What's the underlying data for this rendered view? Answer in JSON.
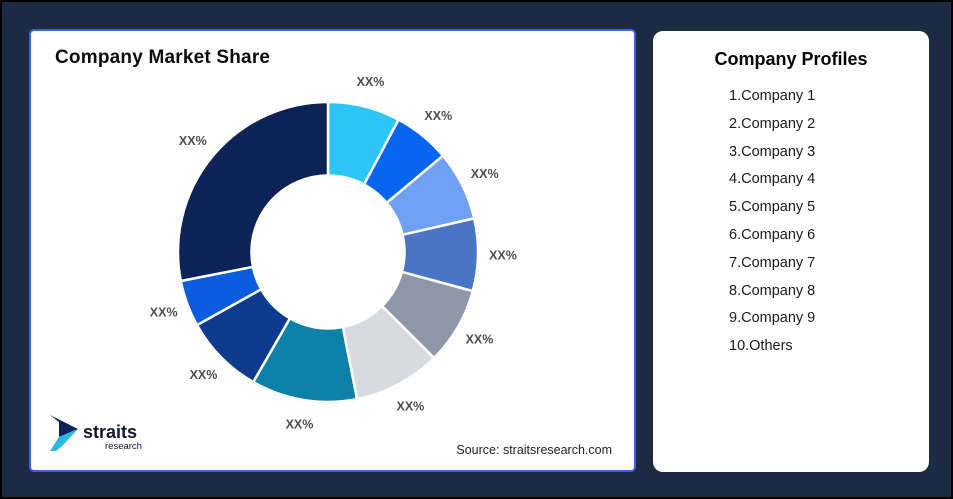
{
  "page": {
    "background_color": "#1D2A44",
    "outer_border_color": "#000000"
  },
  "left_card": {
    "title": "Company Market Share",
    "source": "Source: straitsresearch.com",
    "border_color": "#3E63DE",
    "logo": {
      "brand": "straits",
      "sub": "research",
      "mark_navy": "#0D2356",
      "mark_cyan": "#29B9E9"
    }
  },
  "right_card": {
    "title": "Company Profiles",
    "items": [
      "1.Company 1",
      "2.Company 2",
      "3.Company 3",
      "4.Company 4",
      "5.Company 5",
      "6.Company 6",
      "7.Company 7",
      "8.Company 8",
      "9.Company 9",
      "10.Others"
    ]
  },
  "chart_data": {
    "type": "pie",
    "subtype": "donut",
    "title": "Company Market Share",
    "labels": [
      "XX%",
      "XX%",
      "XX%",
      "XX%",
      "XX%",
      "XX%",
      "XX%",
      "XX%",
      "XX%",
      "XX%"
    ],
    "values": [
      7.8,
      6.1,
      7.5,
      7.8,
      8.3,
      9.4,
      11.4,
      8.6,
      5.0,
      28.1
    ],
    "colors": [
      "#2CC5F5",
      "#0765EF",
      "#6FA0F4",
      "#4A74C4",
      "#8F96A8",
      "#D7DAE1",
      "#0B80A8",
      "#0E3B8E",
      "#0A5CDD",
      "#0D2356"
    ],
    "start_angle_deg": 0,
    "direction": "clockwise",
    "inner_radius_ratio": 0.51,
    "label_color": "#4D4D4D",
    "slice_gap_color": "#FFFFFF",
    "legend": "none"
  }
}
